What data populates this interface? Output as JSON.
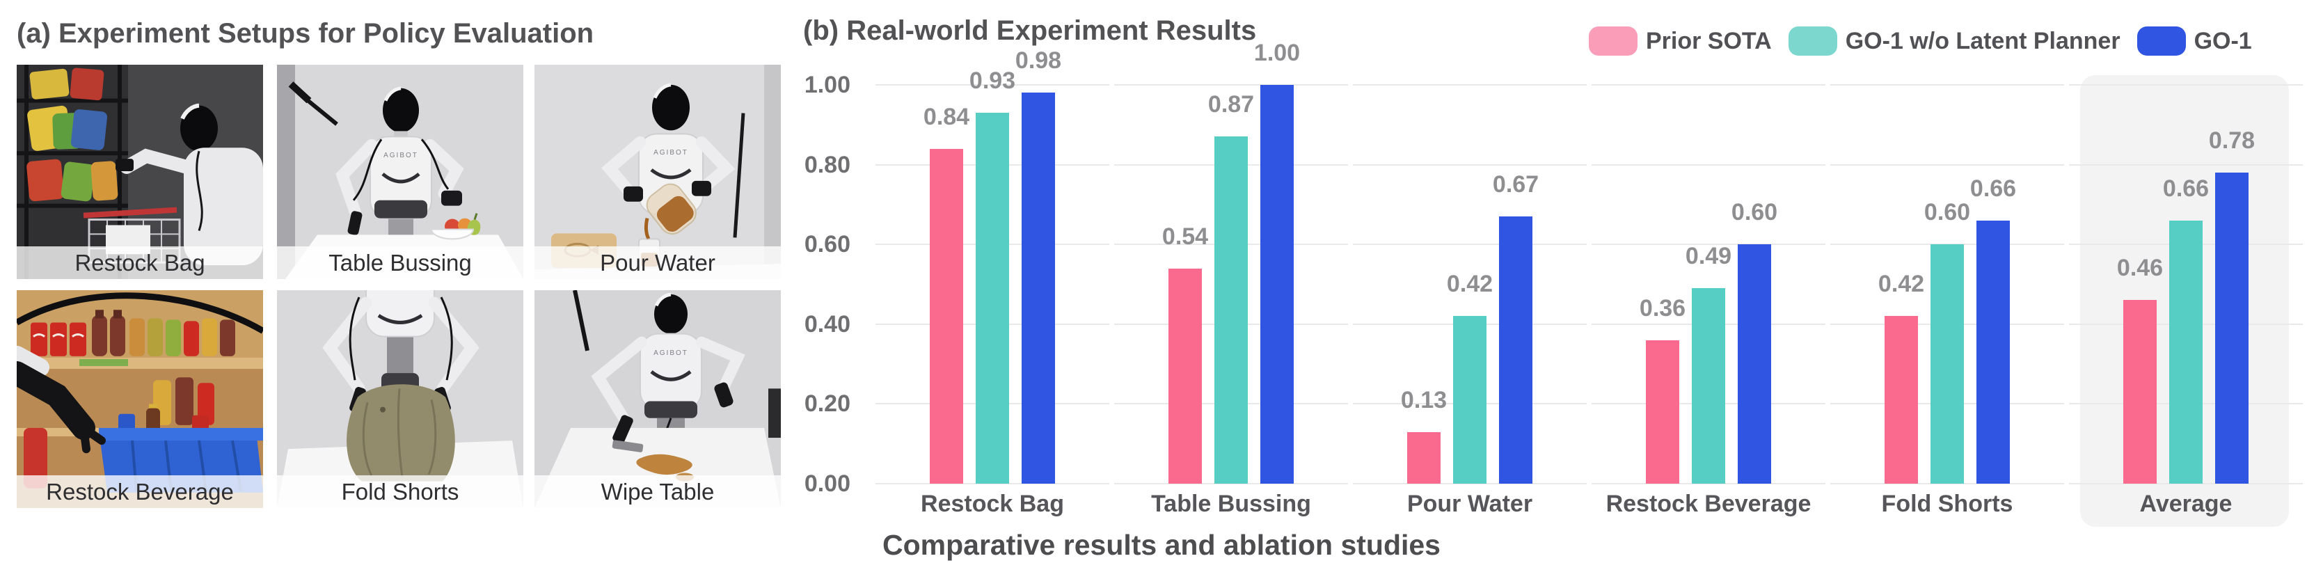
{
  "figure": {
    "panel_a": {
      "title": "(a) Experiment Setups for Policy Evaluation",
      "robot_brand": "AGIBOT",
      "photos": [
        {
          "label": "Restock Bag"
        },
        {
          "label": "Table Bussing"
        },
        {
          "label": "Pour Water"
        },
        {
          "label": "Restock Beverage"
        },
        {
          "label": "Fold Shorts"
        },
        {
          "label": "Wipe Table"
        }
      ]
    },
    "panel_b": {
      "title": "(b) Real-world Experiment Results",
      "caption": "Comparative results and ablation studies"
    }
  },
  "chart_data": {
    "type": "bar",
    "title": "(b) Real-world Experiment Results",
    "categories": [
      "Restock Bag",
      "Table Bussing",
      "Pour Water",
      "Restock Beverage",
      "Fold Shorts",
      "Average"
    ],
    "series": [
      {
        "name": "Prior SOTA",
        "color": "#FA6A8E",
        "legend_color": "#F99DB8",
        "values": [
          0.84,
          0.54,
          0.13,
          0.36,
          0.42,
          0.46
        ]
      },
      {
        "name": "GO-1 w/o Latent Planner",
        "color": "#56CEC3",
        "legend_color": "#7CD8CE",
        "values": [
          0.93,
          0.87,
          0.42,
          0.49,
          0.6,
          0.66
        ]
      },
      {
        "name": "GO-1",
        "color": "#2F55E2",
        "legend_color": "#2F55E2",
        "values": [
          0.98,
          1.0,
          0.67,
          0.6,
          0.66,
          0.78
        ]
      }
    ],
    "ylim": [
      0,
      1.0
    ],
    "ytick_labels": [
      "0.00",
      "0.20",
      "0.40",
      "0.60",
      "0.80",
      "1.00"
    ],
    "grid": "horizontal-per-category",
    "legend_position": "top-right",
    "highlight_category": "Average",
    "value_label_format": "2dp"
  }
}
